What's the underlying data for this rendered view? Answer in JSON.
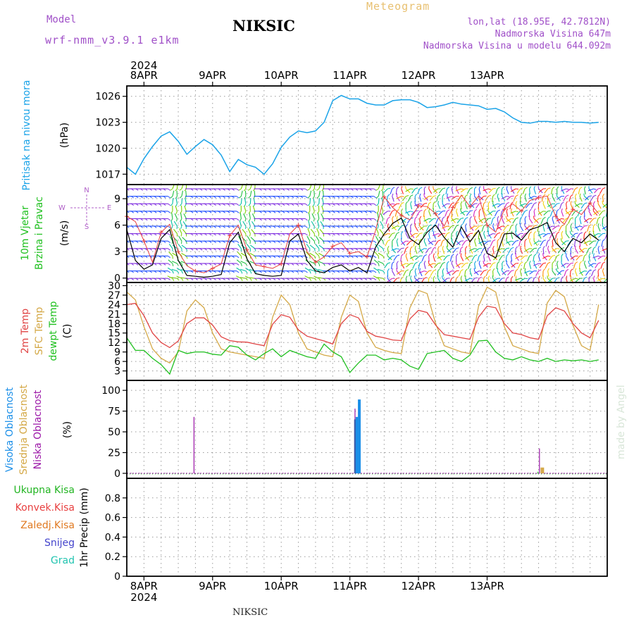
{
  "header": {
    "model_label": "Model",
    "model_name": "wrf-nmm_v3.9.1 e1km",
    "station": "NIKSIC",
    "product": "Meteogram",
    "coords": "lon,lat (18.95E, 42.7812N)",
    "elevation": "Nadmorska Visina 647m",
    "model_elevation": "Nadmorska Visina u modelu 644.092m",
    "footer_station": "NIKSIC",
    "watermark": "made by Angel"
  },
  "colors": {
    "pressure": "#1aa3e8",
    "temp2m": "#e04545",
    "sfc": "#d4a846",
    "dewpt": "#20c020",
    "high_cloud": "#1b8fe8",
    "mid_cloud": "#3d5aa8",
    "low_cloud": "#9c18a8",
    "precip_total": "#22b522",
    "precip_conv": "#e84040",
    "precip_frz": "#e07a22",
    "snow": "#4444cc",
    "hail": "#22c4b0",
    "wind_line": "#000000",
    "gust": "#e84040"
  },
  "chart_data": [
    {
      "type": "line",
      "panel": "pressure",
      "ylabel_main": "Pritisak na nivou mora",
      "ylabel_unit": "(hPa)",
      "ylim": [
        1015.8,
        1027.2
      ],
      "yticks": [
        "1017",
        "1020",
        "1023",
        "1026"
      ],
      "x_hours": [
        0,
        3,
        6,
        9,
        12,
        15,
        18,
        21,
        24,
        27,
        30,
        33,
        36,
        39,
        42,
        45,
        48,
        51,
        54,
        57,
        60,
        63,
        66,
        69,
        72,
        75,
        78,
        81,
        84,
        87,
        90,
        93,
        96,
        99,
        102,
        105,
        108,
        111,
        114,
        117,
        120,
        123,
        126,
        129,
        132,
        135,
        138,
        141,
        144,
        147,
        150,
        153,
        156,
        159,
        162,
        165
      ],
      "series": [
        {
          "values": [
            1017.8,
            1017.0,
            1018.8,
            1020.2,
            1021.4,
            1021.9,
            1020.8,
            1019.3,
            1020.2,
            1021.0,
            1020.4,
            1019.2,
            1017.3,
            1018.7,
            1018.1,
            1017.8,
            1017.0,
            1018.2,
            1020.1,
            1021.3,
            1022.0,
            1021.8,
            1022.0,
            1023.0,
            1025.5,
            1026.1,
            1025.7,
            1025.7,
            1025.2,
            1025.0,
            1025.0,
            1025.5,
            1025.6,
            1025.6,
            1025.3,
            1024.7,
            1024.8,
            1025.0,
            1025.3,
            1025.1,
            1025.0,
            1024.9,
            1024.5,
            1024.6,
            1024.2,
            1023.5,
            1023.0,
            1022.9,
            1023.1,
            1023.1,
            1023.0,
            1023.1,
            1023.0,
            1023.0,
            1022.9,
            1023.0
          ]
        }
      ]
    },
    {
      "type": "line",
      "panel": "wind",
      "ylabel_main": "10m Vjetar",
      "ylabel_sub": "Brzina i Pravac",
      "ylabel_unit": "(m/s)",
      "compass": {
        "n": "N",
        "w": "W",
        "e": "E",
        "s": "S"
      },
      "ylim": [
        -0.5,
        10.6
      ],
      "yticks": [
        "0",
        "3",
        "6",
        "9"
      ],
      "x_hours": [
        0,
        3,
        6,
        9,
        12,
        15,
        18,
        21,
        24,
        27,
        30,
        33,
        36,
        39,
        42,
        45,
        48,
        51,
        54,
        57,
        60,
        63,
        66,
        69,
        72,
        75,
        78,
        81,
        84,
        87,
        90,
        93,
        96,
        99,
        102,
        105,
        108,
        111,
        114,
        117,
        120,
        123,
        126,
        129,
        132,
        135,
        138,
        141,
        144,
        147,
        150,
        153,
        156,
        159,
        162,
        165
      ],
      "series": [
        {
          "values": [
            5.5,
            2.0,
            1.0,
            1.5,
            4.5,
            5.5,
            2.0,
            0.3,
            0.2,
            0.1,
            0.2,
            0.4,
            4.0,
            5.2,
            2.2,
            0.5,
            0.3,
            0.2,
            0.3,
            4.2,
            5.0,
            2.0,
            0.8,
            0.6,
            1.2,
            1.5,
            0.8,
            1.2,
            0.6,
            3.5,
            5.0,
            6.2,
            6.8,
            4.5,
            3.8,
            5.2,
            6.0,
            4.6,
            3.5,
            5.8,
            4.1,
            5.4,
            2.8,
            2.3,
            5.0,
            5.1,
            4.3,
            5.5,
            5.8,
            6.3,
            4.0,
            3.0,
            4.5,
            4.0,
            5.0,
            4.3
          ]
        },
        {
          "values": [
            7.0,
            6.4,
            4.2,
            1.8,
            5.2,
            6.1,
            3.0,
            1.4,
            0.8,
            0.6,
            1.1,
            1.6,
            4.8,
            6.0,
            3.2,
            1.5,
            1.3,
            1.1,
            1.6,
            5.0,
            6.0,
            3.0,
            1.8,
            2.4,
            3.6,
            4.0,
            2.8,
            3.0,
            2.4,
            5.4,
            9.2,
            8.0,
            7.1,
            6.6,
            8.2,
            8.1,
            7.3,
            5.9,
            8.0,
            9.4,
            8.1,
            9.3,
            6.0,
            5.2,
            7.8,
            8.4,
            7.6,
            8.8,
            9.1,
            9.3,
            7.0,
            6.1,
            7.8,
            7.2,
            8.5,
            7.3
          ]
        }
      ]
    },
    {
      "type": "line",
      "panel": "temperature",
      "ylabel_a": "2m Temp",
      "ylabel_b": "SFC Temp",
      "ylabel_c": "dewpt Temp",
      "ylabel_unit": "(C)",
      "ylim": [
        0,
        31
      ],
      "yticks": [
        "3",
        "6",
        "9",
        "12",
        "15",
        "18",
        "21",
        "24",
        "27",
        "30"
      ],
      "x_hours": [
        0,
        3,
        6,
        9,
        12,
        15,
        18,
        21,
        24,
        27,
        30,
        33,
        36,
        39,
        42,
        45,
        48,
        51,
        54,
        57,
        60,
        63,
        66,
        69,
        72,
        75,
        78,
        81,
        84,
        87,
        90,
        93,
        96,
        99,
        102,
        105,
        108,
        111,
        114,
        117,
        120,
        123,
        126,
        129,
        132,
        135,
        138,
        141,
        144,
        147,
        150,
        153,
        156,
        159,
        162,
        165
      ],
      "series": [
        {
          "values": [
            24.0,
            24.4,
            20.5,
            15.0,
            12.0,
            10.4,
            12.5,
            18.0,
            19.8,
            19.8,
            17.5,
            13.8,
            12.6,
            12.2,
            12.1,
            11.5,
            11.0,
            17.8,
            20.8,
            20.0,
            16.0,
            14.0,
            13.2,
            12.5,
            11.5,
            18.0,
            20.8,
            19.8,
            15.5,
            14.0,
            13.5,
            12.8,
            12.6,
            19.5,
            22.2,
            21.5,
            17.5,
            14.5,
            14.0,
            13.5,
            13.0,
            20.0,
            23.5,
            23.0,
            18.0,
            15.0,
            14.5,
            13.5,
            13.0,
            20.5,
            23.0,
            22.0,
            18.0,
            15.0,
            13.5,
            19.0
          ]
        },
        {
          "values": [
            28.0,
            25.5,
            17.0,
            10.0,
            7.0,
            5.5,
            9.0,
            22.0,
            25.5,
            23.0,
            15.0,
            10.0,
            9.0,
            8.5,
            8.0,
            7.5,
            7.0,
            20.0,
            27.0,
            24.0,
            15.0,
            10.0,
            9.0,
            8.0,
            7.5,
            20.0,
            27.0,
            25.0,
            15.0,
            10.5,
            9.5,
            8.8,
            8.5,
            23.0,
            28.5,
            27.5,
            18.0,
            11.0,
            10.0,
            9.0,
            8.5,
            23.5,
            29.5,
            28.0,
            17.0,
            11.0,
            10.0,
            9.0,
            8.5,
            24.5,
            28.5,
            26.5,
            17.5,
            11.0,
            9.5,
            24.0
          ]
        },
        {
          "values": [
            13.5,
            9.5,
            9.5,
            7.0,
            5.0,
            2.0,
            9.5,
            8.5,
            9.0,
            9.0,
            8.3,
            8.0,
            11.0,
            10.5,
            8.0,
            6.5,
            8.5,
            10.0,
            7.5,
            9.5,
            8.5,
            7.5,
            7.0,
            11.5,
            9.0,
            7.5,
            2.5,
            5.5,
            8.0,
            8.0,
            6.5,
            7.0,
            6.5,
            4.5,
            3.5,
            8.5,
            9.0,
            9.5,
            7.0,
            6.0,
            8.0,
            12.5,
            12.7,
            9.0,
            7.0,
            6.5,
            7.5,
            6.5,
            6.0,
            7.0,
            6.0,
            6.5,
            6.2,
            6.5,
            6.0,
            6.5
          ]
        }
      ]
    },
    {
      "type": "bar",
      "panel": "clouds",
      "ylabel_high": "Visoka Oblacnost",
      "ylabel_mid": "Srednja Oblacnost",
      "ylabel_low": "Niska Oblacnost",
      "ylabel_unit": "(%)",
      "ylim": [
        -6,
        112
      ],
      "yticks": [
        "0",
        "25",
        "50",
        "75",
        "100"
      ],
      "bars": [
        {
          "hour": 17.5,
          "layer": "low",
          "value": 68
        },
        {
          "hour": 73.8,
          "layer": "low",
          "value": 78
        },
        {
          "hour": 73.8,
          "layer": "mid",
          "value": 65
        },
        {
          "hour": 74.5,
          "layer": "high",
          "value": 68
        },
        {
          "hour": 75.3,
          "layer": "high",
          "value": 89
        },
        {
          "hour": 138.3,
          "layer": "low",
          "value": 30
        },
        {
          "hour": 137.8,
          "layer": "dew",
          "value": 2
        },
        {
          "hour": 139.0,
          "layer": "mid",
          "value": 7
        },
        {
          "hour": 139.6,
          "layer": "mid",
          "value": 7
        }
      ]
    },
    {
      "type": "line",
      "panel": "precipitation",
      "legend": [
        "Ukupna Kisa",
        "Konvek.Kisa",
        "Zaledj.Kisa",
        "Snijeg",
        "Grad"
      ],
      "ylabel_unit": "1hr Precip (mm)",
      "ylim": [
        0,
        1.0
      ],
      "yticks": [
        "0",
        "0.2",
        "0.4",
        "0.6",
        "0.8"
      ],
      "series": []
    }
  ],
  "time_axis": {
    "year": "2024",
    "dates": [
      "8APR",
      "9APR",
      "10APR",
      "11APR",
      "12APR",
      "13APR"
    ]
  }
}
